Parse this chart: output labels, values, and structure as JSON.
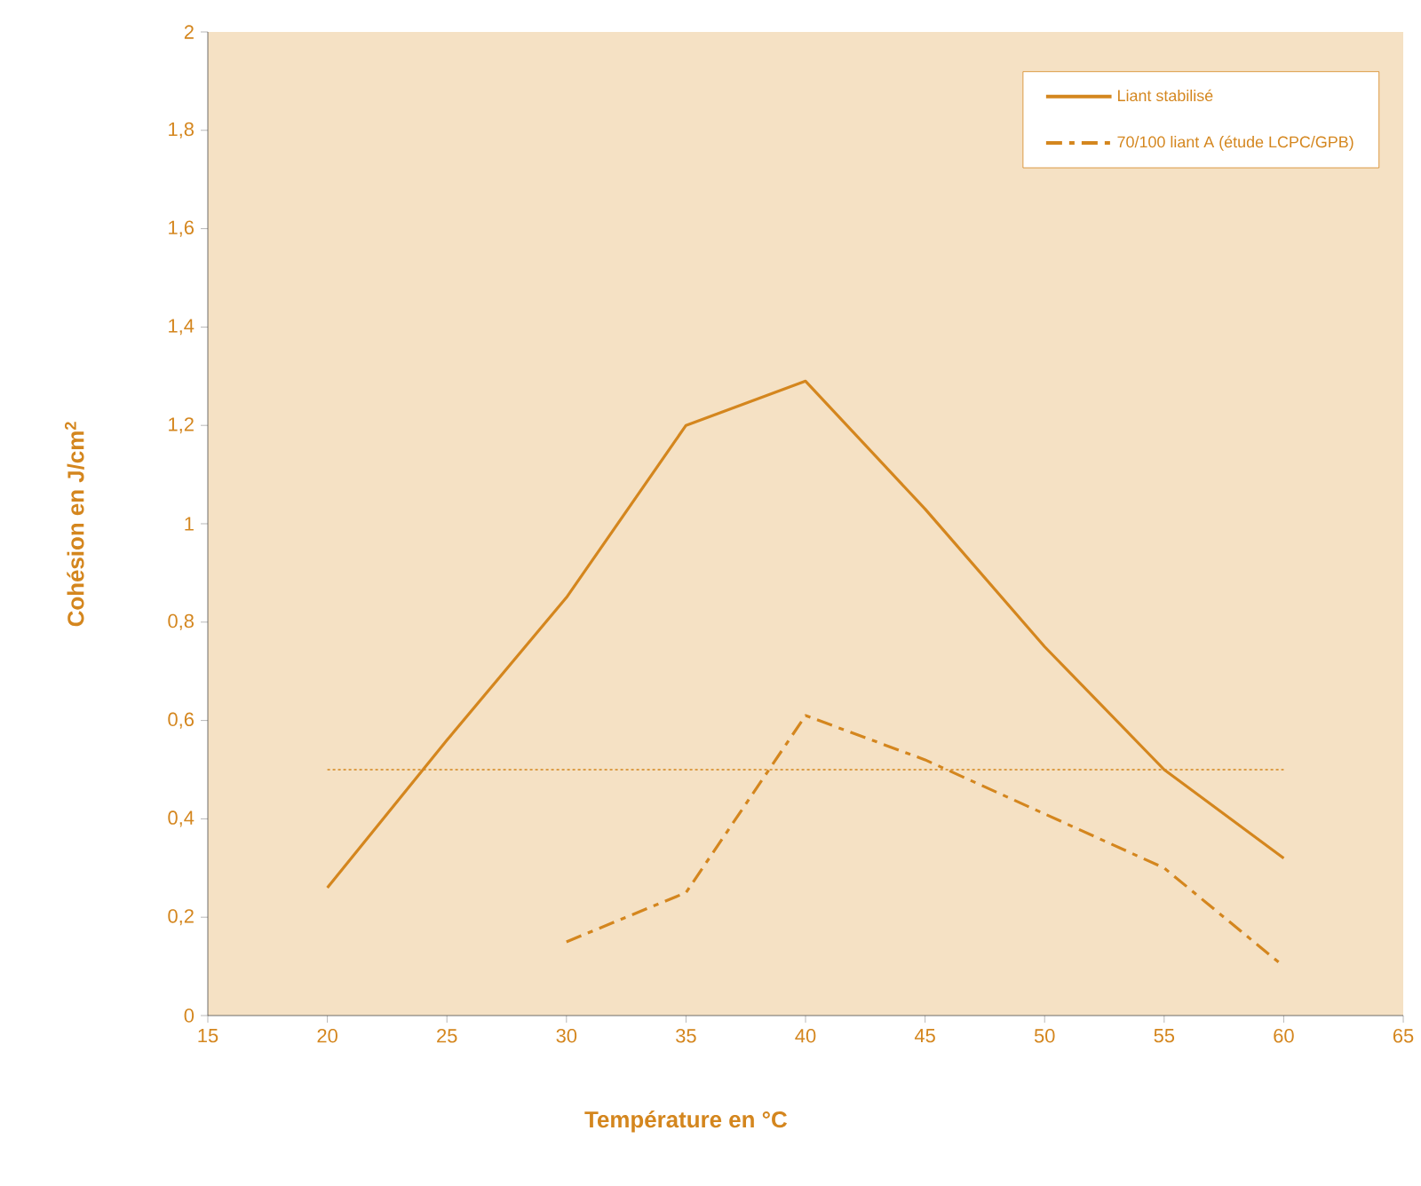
{
  "chart_data": {
    "type": "line",
    "xlabel": "Température en °C",
    "ylabel": "Cohésion en J/cm$^{2}$",
    "series": [
      {
        "name": "Liant stabilisé",
        "color": "#d4861e",
        "line_style": "solid",
        "x": [
          20,
          25,
          30,
          35,
          40,
          45,
          50,
          55,
          60
        ],
        "values": [
          0.26,
          0.56,
          0.85,
          1.2,
          1.29,
          1.03,
          0.75,
          0.5,
          0.32
        ]
      },
      {
        "name": "70/100 liant A (étude LCPC/GPB)",
        "color": "#d4861e",
        "line_style": "dashdot",
        "x": [
          30,
          35,
          40,
          45,
          50,
          55,
          60
        ],
        "values": [
          0.15,
          0.25,
          0.61,
          0.52,
          0.41,
          0.3,
          0.1
        ]
      }
    ],
    "ref_lines": [
      {
        "axis": "y",
        "value": 0.5,
        "color": "#d4861e",
        "line_style": "dotted"
      }
    ],
    "xlim": [
      15,
      65
    ],
    "xticks": [
      15,
      20,
      25,
      30,
      35,
      40,
      45,
      50,
      55,
      60,
      65
    ],
    "ylim": [
      0,
      2
    ],
    "yticks": [
      0,
      {
        "value": 0.2,
        "label": "0,2"
      },
      {
        "value": 0.4,
        "label": "0,4"
      },
      {
        "value": 0.6,
        "label": "0,6"
      },
      {
        "value": 0.8,
        "label": "0,8"
      },
      1,
      {
        "value": 1.2,
        "label": "1,2"
      },
      {
        "value": 1.4,
        "label": "1,4"
      },
      {
        "value": 1.6,
        "label": "1,6"
      },
      {
        "value": 1.8,
        "label": "1,8"
      },
      2
    ],
    "grid": false,
    "legend": "top right",
    "marker": "none"
  }
}
